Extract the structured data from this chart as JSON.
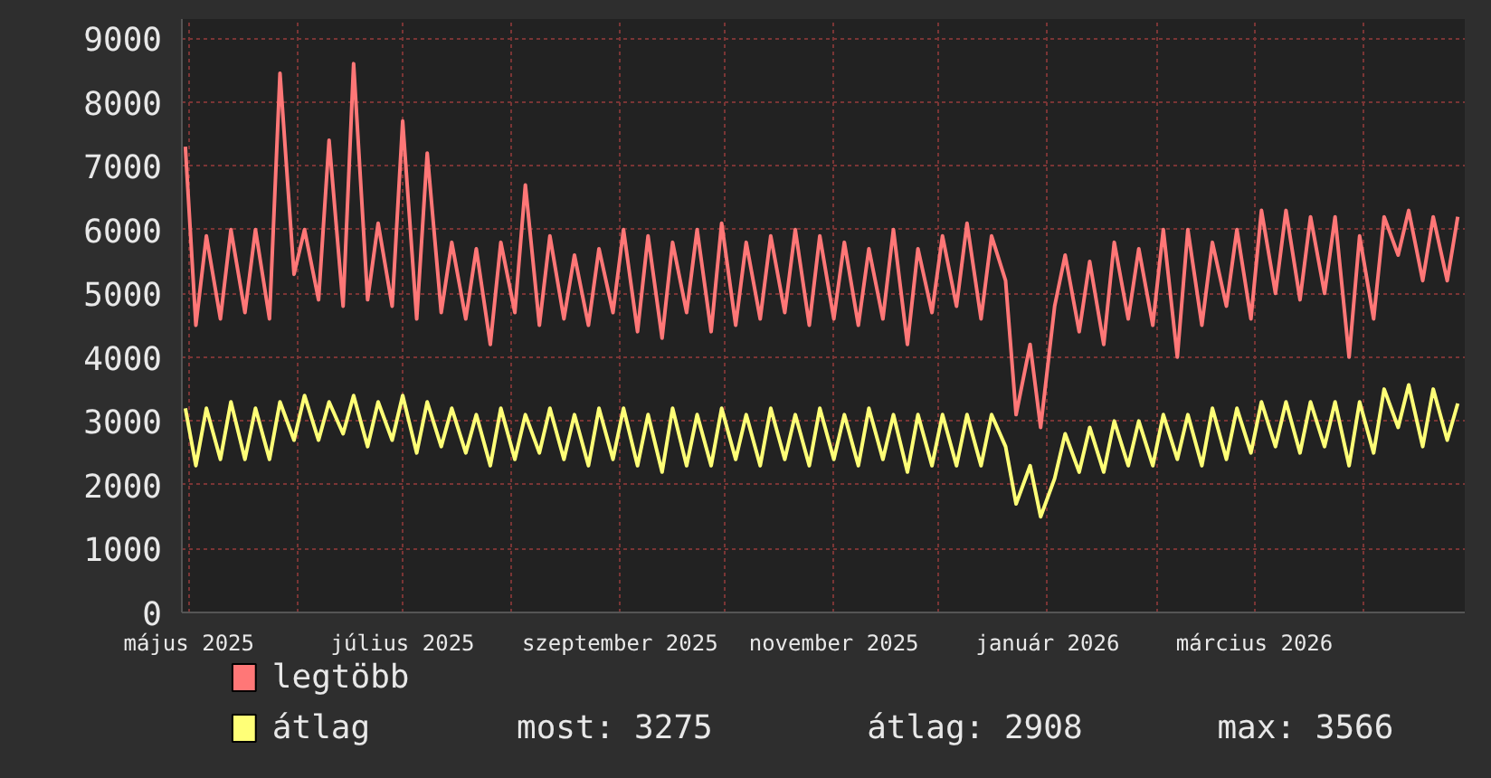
{
  "chart_data": {
    "type": "line",
    "legend": "bottom",
    "grid": true,
    "xlim": [
      "2025-04-29",
      "2026-04-30"
    ],
    "xticks": [
      {
        "value": "2025-05-01",
        "label": "május 2025"
      },
      {
        "value": "2025-06-01",
        "label": null
      },
      {
        "value": "2025-07-01",
        "label": "július 2025"
      },
      {
        "value": "2025-08-01",
        "label": null
      },
      {
        "value": "2025-09-01",
        "label": "szeptember 2025"
      },
      {
        "value": "2025-10-01",
        "label": null
      },
      {
        "value": "2025-11-01",
        "label": "november 2025"
      },
      {
        "value": "2025-12-01",
        "label": null
      },
      {
        "value": "2026-01-01",
        "label": "január 2026"
      },
      {
        "value": "2026-02-01",
        "label": null
      },
      {
        "value": "2026-03-01",
        "label": "március 2026"
      },
      {
        "value": "2026-04-01",
        "label": null
      }
    ],
    "ylim": [
      0,
      9300
    ],
    "yticks": [
      0,
      1000,
      2000,
      3000,
      4000,
      5000,
      6000,
      7000,
      8000,
      9000
    ],
    "annotations": [
      "most: 3275",
      "átlag: 2908",
      "max: 3566"
    ],
    "x": [
      "2025-04-30",
      "2025-05-03",
      "2025-05-06",
      "2025-05-10",
      "2025-05-13",
      "2025-05-17",
      "2025-05-20",
      "2025-05-24",
      "2025-05-27",
      "2025-05-31",
      "2025-06-03",
      "2025-06-07",
      "2025-06-10",
      "2025-06-14",
      "2025-06-17",
      "2025-06-21",
      "2025-06-24",
      "2025-06-28",
      "2025-07-01",
      "2025-07-05",
      "2025-07-08",
      "2025-07-12",
      "2025-07-15",
      "2025-07-19",
      "2025-07-22",
      "2025-07-26",
      "2025-07-29",
      "2025-08-02",
      "2025-08-05",
      "2025-08-09",
      "2025-08-12",
      "2025-08-16",
      "2025-08-19",
      "2025-08-23",
      "2025-08-26",
      "2025-08-30",
      "2025-09-02",
      "2025-09-06",
      "2025-09-09",
      "2025-09-13",
      "2025-09-16",
      "2025-09-20",
      "2025-09-23",
      "2025-09-27",
      "2025-09-30",
      "2025-10-04",
      "2025-10-07",
      "2025-10-11",
      "2025-10-14",
      "2025-10-18",
      "2025-10-21",
      "2025-10-25",
      "2025-10-28",
      "2025-11-01",
      "2025-11-04",
      "2025-11-08",
      "2025-11-11",
      "2025-11-15",
      "2025-11-18",
      "2025-11-22",
      "2025-11-25",
      "2025-11-29",
      "2025-12-02",
      "2025-12-06",
      "2025-12-09",
      "2025-12-13",
      "2025-12-16",
      "2025-12-20",
      "2025-12-23",
      "2025-12-27",
      "2025-12-30",
      "2026-01-03",
      "2026-01-06",
      "2026-01-10",
      "2026-01-13",
      "2026-01-17",
      "2026-01-20",
      "2026-01-24",
      "2026-01-27",
      "2026-01-31",
      "2026-02-03",
      "2026-02-07",
      "2026-02-10",
      "2026-02-14",
      "2026-02-17",
      "2026-02-21",
      "2026-02-24",
      "2026-02-28",
      "2026-03-03",
      "2026-03-07",
      "2026-03-10",
      "2026-03-14",
      "2026-03-17",
      "2026-03-21",
      "2026-03-24",
      "2026-03-28",
      "2026-03-31",
      "2026-04-04",
      "2026-04-07",
      "2026-04-11",
      "2026-04-14",
      "2026-04-18",
      "2026-04-21",
      "2026-04-25",
      "2026-04-28"
    ],
    "series": [
      {
        "name": "legtöbb",
        "color": "#ff7777",
        "values": [
          7300,
          4500,
          5900,
          4600,
          6000,
          4700,
          6000,
          4600,
          8450,
          5300,
          6000,
          4900,
          7400,
          4800,
          8600,
          4900,
          6100,
          4800,
          7700,
          4600,
          7200,
          4700,
          5800,
          4600,
          5700,
          4200,
          5800,
          4700,
          6700,
          4500,
          5900,
          4600,
          5600,
          4500,
          5700,
          4700,
          6000,
          4400,
          5900,
          4300,
          5800,
          4700,
          6000,
          4400,
          6100,
          4500,
          5800,
          4600,
          5900,
          4700,
          6000,
          4500,
          5900,
          4600,
          5800,
          4500,
          5700,
          4600,
          6000,
          4200,
          5700,
          4700,
          5900,
          4800,
          6100,
          4600,
          5900,
          5200,
          3100,
          4200,
          2900,
          4800,
          5600,
          4400,
          5500,
          4200,
          5800,
          4600,
          5700,
          4500,
          6000,
          4000,
          6000,
          4500,
          5800,
          4800,
          6000,
          4600,
          6300,
          5000,
          6300,
          4900,
          6200,
          5000,
          6200,
          4000,
          5900,
          4600,
          6200,
          5600,
          6300,
          5200,
          6200,
          5200,
          6200
        ]
      },
      {
        "name": "átlag",
        "color": "#ffff77",
        "values": [
          3200,
          2300,
          3200,
          2400,
          3300,
          2400,
          3200,
          2400,
          3300,
          2700,
          3400,
          2700,
          3300,
          2800,
          3400,
          2600,
          3300,
          2700,
          3400,
          2500,
          3300,
          2600,
          3200,
          2500,
          3100,
          2300,
          3200,
          2400,
          3100,
          2500,
          3200,
          2400,
          3100,
          2300,
          3200,
          2400,
          3200,
          2300,
          3100,
          2200,
          3200,
          2300,
          3100,
          2300,
          3200,
          2400,
          3100,
          2300,
          3200,
          2400,
          3100,
          2300,
          3200,
          2400,
          3100,
          2300,
          3200,
          2400,
          3100,
          2200,
          3100,
          2300,
          3100,
          2300,
          3100,
          2300,
          3100,
          2600,
          1700,
          2300,
          1500,
          2100,
          2800,
          2200,
          2900,
          2200,
          3000,
          2300,
          3000,
          2300,
          3100,
          2400,
          3100,
          2300,
          3200,
          2400,
          3200,
          2500,
          3300,
          2600,
          3300,
          2500,
          3300,
          2600,
          3300,
          2300,
          3300,
          2500,
          3500,
          2900,
          3566,
          2600,
          3500,
          2700,
          3275
        ]
      }
    ]
  }
}
